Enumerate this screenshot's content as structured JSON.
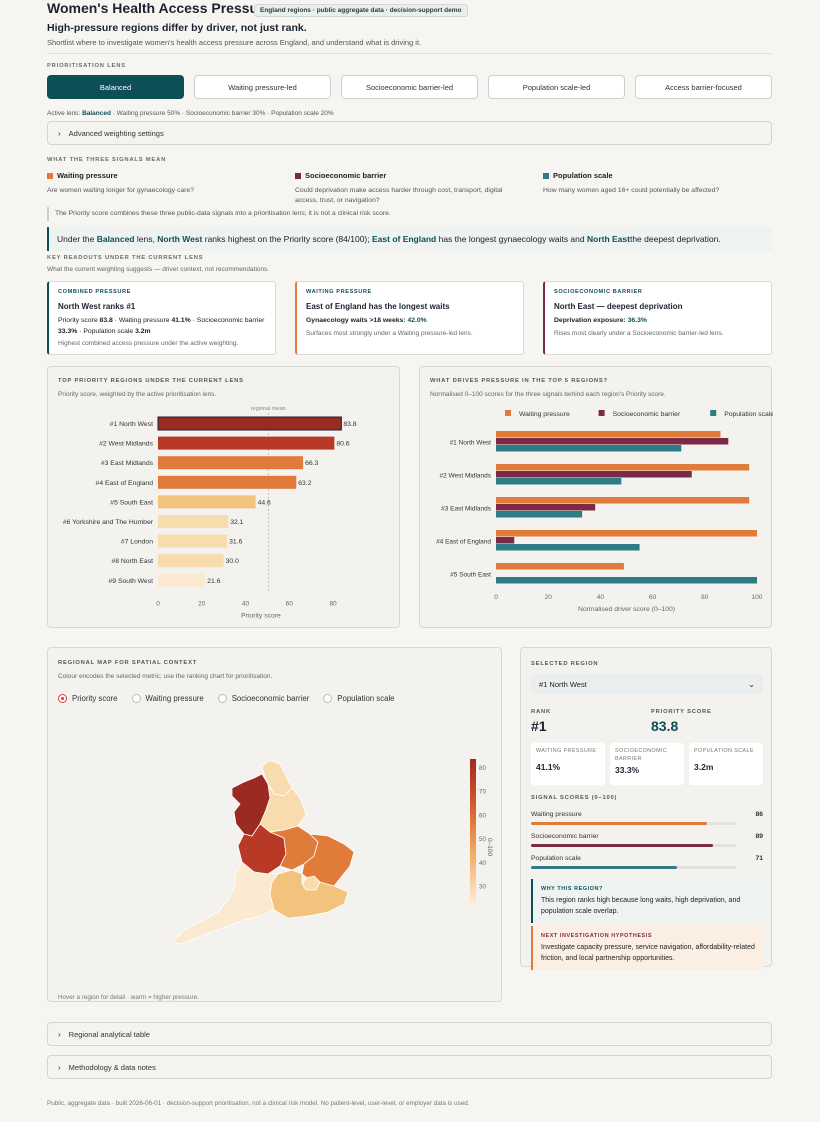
{
  "header": {
    "title": "Women's Health Access Pressure",
    "badge": "England regions · public aggregate data · decision-support demo",
    "headline": "High-pressure regions differ by driver, not just rank.",
    "subtitle": "Shortlist where to investigate women's health access pressure across England, and understand what is driving it."
  },
  "lens": {
    "section_label": "PRIORITISATION LENS",
    "options": [
      "Balanced",
      "Waiting pressure-led",
      "Socioeconomic barrier-led",
      "Population scale-led",
      "Access barrier-focused"
    ],
    "active_index": 0,
    "active_prefix": "Active lens:",
    "active_name": "Balanced",
    "active_weights": "· Waiting pressure 50% · Socioeconomic barrier 30% · Population scale 20%",
    "advanced_label": "Advanced weighting settings"
  },
  "signals": {
    "section_label": "WHAT THE THREE SIGNALS MEAN",
    "items": [
      {
        "name": "Waiting pressure",
        "question": "Are women waiting longer for gynaecology care?",
        "color": "#e07b39"
      },
      {
        "name": "Socioeconomic barrier",
        "question": "Could deprivation make access harder through cost, transport, digital access, trust, or navigation?",
        "color": "#7a2a45"
      },
      {
        "name": "Population scale",
        "question": "How many women aged 16+ could potentially be affected?",
        "color": "#2e7d86"
      }
    ],
    "note": "The Priority score combines these three public-data signals into a prioritisation lens; it is not a clinical risk score."
  },
  "callout": {
    "p1": "Under the ",
    "lens": "Balanced",
    "p2": " lens, ",
    "top": "North West",
    "p3": " ranks highest on the Priority score (84/100); ",
    "wait": "East of England",
    "p4": " has the longest gynaecology waits and ",
    "dep": "North East",
    "p5": " the deepest deprivation."
  },
  "readouts": {
    "section_label": "KEY READOUTS UNDER THE CURRENT LENS",
    "section_sub": "What the current weighting suggests — driver context, not recommendations.",
    "cards": [
      {
        "eyebrow": "COMBINED PRESSURE",
        "heading": "North West ranks #1",
        "l1": "Priority score",
        "v1": "83.8",
        "l2": "· Waiting pressure",
        "v2": "41.1%",
        "l3": "· Socioeconomic barrier",
        "v3": "33.3%",
        "l4": "· Population scale",
        "v4": "3.2m",
        "foot": "Highest combined access pressure under the active weighting.",
        "color": "#0e4f57"
      },
      {
        "eyebrow": "WAITING PRESSURE",
        "heading": "East of England has the longest waits",
        "l1": "Gynaecology waits >18 weeks:",
        "v1": "42.0%",
        "foot": "Surfaces most strongly under a Waiting pressure-led lens.",
        "color": "#e07b39"
      },
      {
        "eyebrow": "SOCIOECONOMIC BARRIER",
        "heading": "North East — deepest deprivation",
        "l1": "Deprivation exposure:",
        "v1": "36.3%",
        "foot": "Rises most clearly under a Socioeconomic barrier-led lens.",
        "color": "#7a2a45"
      }
    ]
  },
  "chart_data": [
    {
      "type": "bar",
      "title": "TOP PRIORITY REGIONS UNDER THE CURRENT LENS",
      "subtitle": "Priority score, weighted by the active prioritisation lens.",
      "categories": [
        "#1  North West",
        "#2  West Midlands",
        "#3  East Midlands",
        "#4  East of England",
        "#5  South East",
        "#6  Yorkshire and The Humber",
        "#7  London",
        "#8  North East",
        "#9  South West"
      ],
      "values": [
        83.8,
        80.6,
        66.3,
        63.2,
        44.6,
        32.1,
        31.6,
        30.0,
        21.6
      ],
      "colors": [
        "#9b2a22",
        "#b83a26",
        "#e07b39",
        "#e07b39",
        "#f3c27c",
        "#f8dcae",
        "#f8dcae",
        "#f8dcae",
        "#fbe9d2"
      ],
      "xlabel": "Priority score",
      "xticks": [
        0,
        20,
        40,
        60,
        80
      ],
      "xlim": [
        0,
        85
      ],
      "reference_label": "regional mean",
      "reference_value": 50.4
    },
    {
      "type": "bar",
      "title": "WHAT DRIVES PRESSURE IN THE TOP 5 REGIONS?",
      "subtitle": "Normalised 0–100 scores for the three signals behind each region's Priority score.",
      "categories": [
        "#1  North West",
        "#2  West Midlands",
        "#3  East Midlands",
        "#4  East of England",
        "#5  South East"
      ],
      "series": [
        {
          "name": "Waiting pressure",
          "color": "#e07b39",
          "values": [
            86,
            97,
            97,
            100,
            49
          ]
        },
        {
          "name": "Socioeconomic barrier",
          "color": "#7a2a45",
          "values": [
            89,
            75,
            38,
            7,
            0
          ]
        },
        {
          "name": "Population scale",
          "color": "#2e7d86",
          "values": [
            71,
            48,
            33,
            55,
            100
          ]
        }
      ],
      "xlabel": "Normalised driver score (0–100)",
      "xticks": [
        0,
        20,
        40,
        60,
        80,
        100
      ],
      "xlim": [
        0,
        100
      ]
    }
  ],
  "map": {
    "title": "REGIONAL MAP FOR SPATIAL CONTEXT",
    "subtitle": "Colour encodes the selected metric; use the ranking chart for prioritisation.",
    "metrics": [
      "Priority score",
      "Waiting pressure",
      "Socioeconomic barrier",
      "Population scale"
    ],
    "selected_metric": 0,
    "legend_title": "0–100",
    "legend_ticks": [
      "80",
      "70",
      "60",
      "50",
      "40",
      "30"
    ],
    "footer": "Hover a region for detail · warm = higher pressure.",
    "regions": {
      "north_west": "#9b2a22",
      "north_east": "#f8dcae",
      "yorkshire": "#f8dcae",
      "west_midlands": "#b83a26",
      "east_midlands": "#e07b39",
      "east_of_england": "#e07b39",
      "london": "#f8dcae",
      "south_east": "#f3c27c",
      "south_west": "#fbe9d2"
    }
  },
  "selected": {
    "section_label": "SELECTED REGION",
    "dropdown_value": "#1 North West",
    "rank_label": "RANK",
    "rank_value": "#1",
    "score_label": "PRIORITY SCORE",
    "score_value": "83.8",
    "mini": [
      {
        "label": "WAITING PRESSURE",
        "value": "41.1%"
      },
      {
        "label": "SOCIOECONOMIC BARRIER",
        "value": "33.3%"
      },
      {
        "label": "POPULATION SCALE",
        "value": "3.2m"
      }
    ],
    "signal_scores_label": "SIGNAL SCORES (0–100)",
    "scores": [
      {
        "name": "Waiting pressure",
        "value": 86,
        "color": "#e07b39"
      },
      {
        "name": "Socioeconomic barrier",
        "value": 89,
        "color": "#7a2a45"
      },
      {
        "name": "Population scale",
        "value": 71,
        "color": "#2e7d86"
      }
    ],
    "why_label": "WHY THIS REGION?",
    "why_text": "This region ranks high because long waits, high deprivation, and population scale overlap.",
    "hyp_label": "NEXT INVESTIGATION HYPOTHESIS",
    "hyp_text": "Investigate capacity pressure, service navigation, affordability-related friction, and local partnership opportunities."
  },
  "collapsibles": [
    "Regional analytical table",
    "Methodology & data notes"
  ],
  "footer": "Public, aggregate data · built 2026-06-01 · decision-support prioritisation, not a clinical risk model. No patient-level, user-level, or employer data is used."
}
